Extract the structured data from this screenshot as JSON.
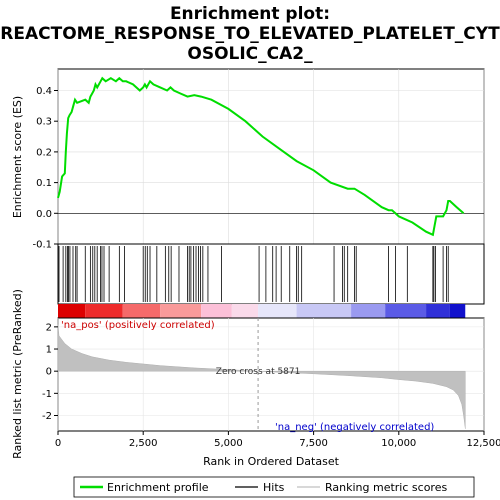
{
  "chart_data": {
    "type": "line",
    "title_lines": [
      "Enrichment plot:",
      "REACTOME_RESPONSE_TO_ELEVATED_PLATELET_CYT",
      "OSOLIC_CA2_"
    ],
    "top_panel": {
      "ylabel": "Enrichment score (ES)",
      "ylim": [
        -0.1,
        0.47
      ],
      "yticks": [
        -0.1,
        0.0,
        0.1,
        0.2,
        0.3,
        0.4
      ],
      "ytick_labels": [
        "-0.1",
        "0.0",
        "0.1",
        "0.2",
        "0.3",
        "0.4"
      ],
      "series": [
        {
          "name": "Enrichment profile",
          "color": "#00dd00",
          "x": [
            0,
            50,
            120,
            200,
            230,
            260,
            300,
            340,
            400,
            450,
            500,
            560,
            800,
            900,
            950,
            1000,
            1050,
            1100,
            1150,
            1250,
            1300,
            1400,
            1550,
            1700,
            1800,
            1900,
            2000,
            2200,
            2400,
            2500,
            2550,
            2600,
            2700,
            2800,
            3000,
            3200,
            3300,
            3400,
            3600,
            3800,
            4000,
            4200,
            4500,
            5000,
            5500,
            6000,
            6500,
            7000,
            7500,
            8000,
            8500,
            8700,
            9000,
            9500,
            9700,
            9800,
            9900,
            10000,
            10200,
            10400,
            10800,
            11000,
            11050,
            11100,
            11300,
            11400,
            11450,
            11500,
            11700,
            11900
          ],
          "y": [
            0.05,
            0.07,
            0.12,
            0.13,
            0.2,
            0.26,
            0.31,
            0.32,
            0.33,
            0.35,
            0.37,
            0.36,
            0.37,
            0.36,
            0.38,
            0.39,
            0.4,
            0.42,
            0.41,
            0.43,
            0.44,
            0.43,
            0.44,
            0.43,
            0.44,
            0.43,
            0.43,
            0.42,
            0.4,
            0.41,
            0.42,
            0.41,
            0.43,
            0.42,
            0.41,
            0.4,
            0.41,
            0.4,
            0.39,
            0.38,
            0.385,
            0.38,
            0.37,
            0.34,
            0.3,
            0.25,
            0.21,
            0.17,
            0.14,
            0.1,
            0.08,
            0.08,
            0.06,
            0.02,
            0.01,
            0.01,
            0.0,
            -0.01,
            -0.02,
            -0.03,
            -0.06,
            -0.07,
            -0.04,
            -0.01,
            -0.01,
            0.01,
            0.04,
            0.04,
            0.02,
            0.0
          ]
        }
      ]
    },
    "hits": {
      "name": "Hits",
      "color": "#000000",
      "x": [
        30,
        150,
        230,
        280,
        310,
        350,
        440,
        520,
        560,
        800,
        950,
        1020,
        1080,
        1150,
        1250,
        1290,
        1350,
        1500,
        1800,
        1950,
        2500,
        2560,
        2620,
        2700,
        2900,
        3150,
        3250,
        3320,
        3550,
        3800,
        3850,
        3900,
        3980,
        4050,
        4120,
        4180,
        4250,
        4400,
        4800,
        5900,
        6100,
        6300,
        6400,
        6550,
        6800,
        7000,
        7050,
        7150,
        8100,
        8350,
        8400,
        8500,
        8700,
        8750,
        9700,
        9900,
        10250,
        11000,
        11030,
        11080,
        11300,
        11400,
        11450
      ]
    },
    "bottom_panel": {
      "ylabel": "Ranked list metric (PreRanked)",
      "xlabel": "Rank in Ordered Dataset",
      "ylim": [
        -2.7,
        2.4
      ],
      "yticks": [
        -2,
        -1,
        0,
        1,
        2
      ],
      "ytick_labels": [
        "-2",
        "-1",
        "0",
        "1",
        "2"
      ],
      "series": [
        {
          "name": "Ranking metric scores",
          "color": "#c0c0c0",
          "x": [
            0,
            30,
            100,
            200,
            400,
            700,
            1000,
            1500,
            2000,
            3000,
            4000,
            5000,
            5871,
            6500,
            7500,
            8500,
            9500,
            10000,
            10500,
            11000,
            11400,
            11600,
            11750,
            11850,
            11900,
            11950
          ],
          "y": [
            2.1,
            1.6,
            1.45,
            1.25,
            1.0,
            0.8,
            0.65,
            0.5,
            0.4,
            0.25,
            0.15,
            0.07,
            0.0,
            -0.05,
            -0.12,
            -0.2,
            -0.3,
            -0.38,
            -0.45,
            -0.55,
            -0.7,
            -0.85,
            -1.1,
            -1.5,
            -2.0,
            -2.6
          ]
        }
      ],
      "zero_cross_label": "Zero cross at 5871",
      "zero_cross_x": 5871,
      "pos_label": "'na_pos' (positively correlated)",
      "neg_label": "'na_neg' (negatively correlated)"
    },
    "xlim": [
      0,
      12500
    ],
    "xticks": [
      0,
      2500,
      5000,
      7500,
      10000,
      12500
    ],
    "xtick_labels": [
      "0",
      "2,500",
      "5,000",
      "7,500",
      "10,000",
      "12,500"
    ],
    "heat_bar": {
      "segments": [
        {
          "x0": 0,
          "x1": 800,
          "color": "#dd0000"
        },
        {
          "x0": 800,
          "x1": 1900,
          "color": "#ee2b2b"
        },
        {
          "x0": 1900,
          "x1": 3000,
          "color": "#f56a6a"
        },
        {
          "x0": 3000,
          "x1": 4200,
          "color": "#f99a9a"
        },
        {
          "x0": 4200,
          "x1": 5100,
          "color": "#fcc0d8"
        },
        {
          "x0": 5100,
          "x1": 5871,
          "color": "#fadaea"
        },
        {
          "x0": 5871,
          "x1": 7000,
          "color": "#e6e6fa"
        },
        {
          "x0": 7000,
          "x1": 8600,
          "color": "#c8c8f5"
        },
        {
          "x0": 8600,
          "x1": 9600,
          "color": "#9a9af0"
        },
        {
          "x0": 9600,
          "x1": 10800,
          "color": "#5b5be6"
        },
        {
          "x0": 10800,
          "x1": 11500,
          "color": "#3030d8"
        },
        {
          "x0": 11500,
          "x1": 11950,
          "color": "#1111cc"
        }
      ]
    },
    "legend": [
      {
        "label": "Enrichment profile",
        "color": "#00dd00"
      },
      {
        "label": "Hits",
        "color": "#000000"
      },
      {
        "label": "Ranking metric scores",
        "color": "#c0c0c0"
      }
    ]
  }
}
